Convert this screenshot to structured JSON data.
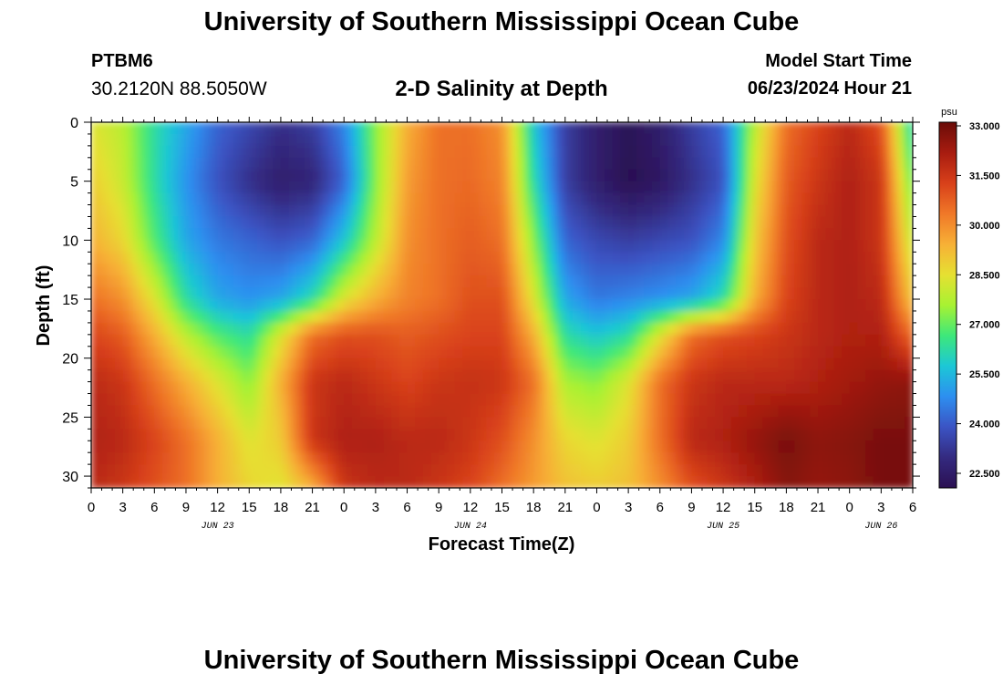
{
  "header": {
    "title": "University of Southern Mississippi Ocean Cube",
    "station_id": "PTBM6",
    "station_coords": "30.2120N  88.5050W",
    "subtitle": "2-D Salinity at Depth",
    "model_start_label": "Model Start Time",
    "model_start_value": "06/23/2024 Hour 21"
  },
  "footer": {
    "title": "University of Southern Mississippi Ocean Cube"
  },
  "chart_data": {
    "type": "heatmap",
    "title": "2-D Salinity at Depth",
    "xlabel": "Forecast Time(Z)",
    "ylabel": "Depth (ft)",
    "x_hours_range": [
      0,
      78
    ],
    "y_range": [
      0,
      31
    ],
    "y_inverted": true,
    "x_ticks": [
      "0",
      "3",
      "6",
      "9",
      "12",
      "15",
      "18",
      "21",
      "0",
      "3",
      "6",
      "9",
      "12",
      "15",
      "18",
      "21",
      "0",
      "3",
      "6",
      "9",
      "12",
      "15",
      "18",
      "21",
      "0",
      "3",
      "6"
    ],
    "y_ticks": [
      0,
      5,
      10,
      15,
      20,
      25,
      30
    ],
    "date_labels": [
      {
        "label": "JUN 23",
        "hour": 12
      },
      {
        "label": "JUN 24",
        "hour": 36
      },
      {
        "label": "JUN 25",
        "hour": 60
      },
      {
        "label": "JUN 26",
        "hour": 75
      }
    ],
    "colorbar": {
      "unit": "psu",
      "min": 22.5,
      "max": 33.0,
      "ticks": [
        "33.000",
        "31.500",
        "30.000",
        "28.500",
        "27.000",
        "25.500",
        "24.000",
        "22.500"
      ],
      "colors": [
        "#2b1052",
        "#342a80",
        "#3b54c4",
        "#2d8ff0",
        "#1cc7d6",
        "#3ee87a",
        "#a8f232",
        "#e6e032",
        "#f7b036",
        "#f07828",
        "#d8401a",
        "#a81c10",
        "#6a0c08"
      ]
    },
    "field": {
      "description": "Salinity (psu) sampled at depth rows (ft) and forecast hours",
      "depths": [
        0,
        5,
        10,
        15,
        18,
        22,
        27,
        31
      ],
      "hours": [
        0,
        3,
        6,
        9,
        12,
        15,
        18,
        21,
        24,
        27,
        30,
        33,
        36,
        39,
        42,
        45,
        48,
        51,
        54,
        57,
        60,
        63,
        66,
        69,
        72,
        75,
        78
      ],
      "values": [
        [
          28.5,
          28.0,
          26.5,
          25.5,
          24.5,
          24.0,
          23.5,
          23.8,
          25.0,
          27.5,
          29.5,
          30.5,
          30.5,
          30.0,
          26.0,
          23.8,
          23.0,
          22.6,
          23.0,
          23.8,
          24.5,
          28.0,
          30.5,
          31.2,
          31.8,
          31.0,
          26.0
        ],
        [
          29.0,
          28.2,
          26.5,
          25.2,
          24.2,
          23.5,
          23.0,
          23.2,
          24.5,
          27.5,
          29.8,
          30.5,
          30.6,
          30.2,
          26.5,
          23.8,
          23.0,
          22.5,
          22.8,
          23.5,
          24.2,
          28.5,
          30.8,
          31.5,
          32.0,
          31.5,
          27.0
        ],
        [
          29.5,
          28.8,
          27.0,
          25.5,
          24.8,
          24.5,
          24.2,
          24.5,
          26.0,
          28.0,
          30.0,
          30.5,
          30.8,
          30.5,
          27.5,
          24.5,
          24.0,
          23.8,
          24.0,
          24.2,
          25.0,
          29.0,
          31.0,
          31.8,
          32.0,
          31.5,
          28.0
        ],
        [
          30.5,
          30.0,
          28.5,
          26.5,
          25.5,
          25.2,
          25.5,
          26.5,
          28.5,
          29.5,
          30.2,
          30.5,
          31.0,
          31.0,
          28.5,
          25.5,
          24.8,
          25.0,
          25.2,
          25.5,
          26.5,
          29.5,
          31.2,
          31.8,
          32.0,
          31.8,
          29.0
        ],
        [
          31.2,
          30.8,
          29.5,
          28.0,
          27.0,
          26.5,
          28.5,
          30.5,
          31.0,
          31.0,
          30.8,
          31.0,
          31.2,
          31.2,
          29.5,
          26.5,
          26.0,
          26.5,
          28.5,
          30.5,
          31.0,
          31.2,
          31.5,
          31.8,
          32.0,
          32.0,
          30.5
        ],
        [
          31.8,
          31.5,
          30.5,
          29.5,
          28.5,
          27.5,
          29.5,
          31.5,
          31.8,
          31.5,
          31.2,
          31.5,
          31.6,
          31.5,
          30.5,
          27.8,
          27.5,
          28.5,
          30.5,
          31.5,
          31.8,
          31.8,
          31.8,
          32.0,
          32.2,
          32.4,
          32.5
        ],
        [
          32.0,
          31.8,
          31.2,
          30.5,
          29.5,
          28.5,
          29.0,
          31.5,
          32.0,
          32.0,
          31.8,
          31.8,
          31.5,
          31.0,
          30.0,
          28.8,
          28.5,
          29.0,
          30.5,
          31.8,
          32.0,
          32.4,
          32.8,
          32.5,
          32.6,
          32.8,
          32.8
        ],
        [
          31.8,
          31.5,
          31.0,
          30.5,
          29.5,
          28.8,
          28.5,
          29.5,
          31.5,
          31.8,
          31.8,
          31.5,
          31.2,
          30.5,
          29.8,
          29.2,
          29.0,
          29.2,
          30.0,
          31.0,
          31.5,
          32.0,
          32.6,
          32.4,
          32.5,
          32.8,
          32.8
        ]
      ]
    }
  }
}
